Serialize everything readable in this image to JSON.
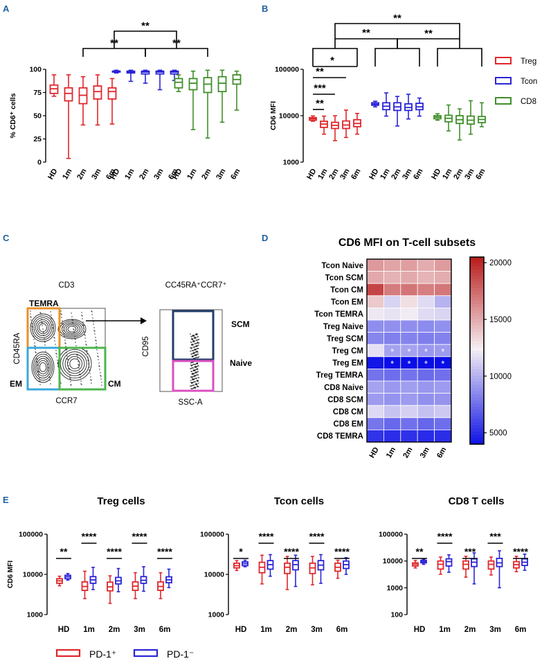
{
  "colors": {
    "treg": "#e0262b",
    "tcon": "#2a24d6",
    "cd8": "#3f8f2a",
    "panel_letter": "#1f5f9e",
    "black": "#000000",
    "gate_temra": "#e8912a",
    "gate_em": "#3aa7dd",
    "gate_cm": "#4bb54d",
    "gate_scm": "#233d6b",
    "gate_naive": "#d94fc0"
  },
  "panels": {
    "A": "A",
    "B": "B",
    "C": "C",
    "D": "D",
    "E": "E"
  },
  "chart_data": [
    {
      "id": "A",
      "type": "box",
      "ylabel": "% CD6⁺ cells",
      "yscale": "linear",
      "ylim": [
        0,
        100
      ],
      "yticks": [
        "0",
        "25",
        "50",
        "75",
        "100"
      ],
      "groups": [
        {
          "series": "Treg",
          "color": "treg",
          "categories": [
            "HD",
            "1m",
            "2m",
            "3m",
            "6m"
          ],
          "boxes": [
            [
              71,
              74,
              79,
              83,
              94
            ],
            [
              4,
              66,
              74,
              80,
              94
            ],
            [
              40,
              63,
              72,
              80,
              92
            ],
            [
              40,
              68,
              76,
              82,
              94
            ],
            [
              41,
              68,
              76,
              80,
              90
            ]
          ]
        },
        {
          "series": "Tcon",
          "color": "tcon",
          "categories": [
            "HD",
            "1m",
            "2m",
            "3m",
            "6m"
          ],
          "boxes": [
            [
              96,
              97,
              98,
              98,
              99
            ],
            [
              87,
              96,
              97,
              98,
              99
            ],
            [
              85,
              95,
              97,
              98,
              99
            ],
            [
              78,
              95,
              97,
              98,
              99
            ],
            [
              88,
              95,
              97,
              98,
              99
            ]
          ]
        },
        {
          "series": "CD8",
          "color": "cd8",
          "categories": [
            "HD",
            "1m",
            "2m",
            "3m",
            "6m"
          ],
          "boxes": [
            [
              76,
              80,
              86,
              90,
              94
            ],
            [
              35,
              78,
              85,
              90,
              98
            ],
            [
              26,
              75,
              84,
              91,
              99
            ],
            [
              43,
              76,
              85,
              92,
              99
            ],
            [
              56,
              84,
              89,
              94,
              98
            ]
          ]
        }
      ],
      "significance": [
        {
          "label": "**",
          "from": [
            0,
            2
          ],
          "to": [
            2,
            2
          ],
          "level": 1,
          "fromGroupSpan": true
        },
        {
          "label": "**",
          "from": [
            1,
            0
          ],
          "to": [
            1,
            4
          ],
          "level": 2
        },
        {
          "label": "**",
          "pairs": "inner"
        }
      ]
    },
    {
      "id": "B",
      "type": "box",
      "ylabel": "CD6 MFI",
      "yscale": "log",
      "ylim": [
        1000,
        100000
      ],
      "yticks": [
        "1000",
        "10000",
        "100000"
      ],
      "groups": [
        {
          "series": "Treg",
          "color": "treg",
          "categories": [
            "HD",
            "1m",
            "2m",
            "3m",
            "6m"
          ],
          "boxes": [
            [
              7600,
              8000,
              8600,
              9100,
              9900
            ],
            [
              4000,
              5600,
              6600,
              7600,
              9800
            ],
            [
              2900,
              5300,
              6200,
              7200,
              10000
            ],
            [
              3400,
              5300,
              6300,
              7700,
              13200
            ],
            [
              4000,
              5800,
              6800,
              8200,
              11200
            ]
          ]
        },
        {
          "series": "Tcon",
          "color": "tcon",
          "categories": [
            "HD",
            "1m",
            "2m",
            "3m",
            "6m"
          ],
          "boxes": [
            [
              15500,
              16800,
              17800,
              19000,
              20500
            ],
            [
              9800,
              13500,
              16000,
              19000,
              31000
            ],
            [
              6000,
              13000,
              15500,
              19000,
              26000
            ],
            [
              8500,
              13000,
              15000,
              18000,
              29000
            ],
            [
              9800,
              13500,
              15500,
              18500,
              24000
            ]
          ]
        },
        {
          "series": "CD8",
          "color": "cd8",
          "categories": [
            "HD",
            "1m",
            "2m",
            "3m",
            "6m"
          ],
          "boxes": [
            [
              8000,
              8600,
              9300,
              10000,
              11000
            ],
            [
              4700,
              7400,
              8800,
              10200,
              17000
            ],
            [
              3000,
              6800,
              8200,
              10000,
              14000
            ],
            [
              4000,
              6600,
              8000,
              9800,
              21000
            ],
            [
              5800,
              7100,
              8300,
              9600,
              19000
            ]
          ]
        }
      ],
      "legend": [
        {
          "name": "Treg",
          "color": "treg"
        },
        {
          "name": "Tcon",
          "color": "tcon"
        },
        {
          "name": "CD8",
          "color": "cd8"
        }
      ],
      "significance_within_treg": [
        "**",
        "***",
        "**",
        "*"
      ]
    },
    {
      "id": "D",
      "type": "heatmap",
      "title": "CD6 MFI on T-cell subsets",
      "rows": [
        "Tcon Naive",
        "Tcon SCM",
        "Tcon CM",
        "Tcon EM",
        "Tcon TEMRA",
        "Treg Naive",
        "Treg SCM",
        "Treg CM",
        "Treg EM",
        "Treg TEMRA",
        "CD8 Naive",
        "CD8 SCM",
        "CD8 CM",
        "CD8 EM",
        "CD8 TEMRA"
      ],
      "columns": [
        "HD",
        "1m",
        "2m",
        "3m",
        "6m"
      ],
      "values": [
        [
          15800,
          15400,
          15600,
          15100,
          15700
        ],
        [
          15200,
          14900,
          15200,
          14800,
          15100
        ],
        [
          19000,
          16900,
          17200,
          16800,
          17100
        ],
        [
          14000,
          11400,
          13200,
          11700,
          10200
        ],
        [
          12200,
          12000,
          12300,
          11700,
          11500
        ],
        [
          8800,
          8900,
          8800,
          8700,
          8900
        ],
        [
          8500,
          8300,
          8400,
          8200,
          8400
        ],
        [
          11900,
          9600,
          9600,
          9200,
          9300
        ],
        [
          4300,
          3900,
          3800,
          3700,
          3800
        ],
        [
          7800,
          7600,
          7800,
          7500,
          7700
        ],
        [
          9600,
          9200,
          9400,
          9100,
          9300
        ],
        [
          9300,
          9000,
          9300,
          8900,
          9000
        ],
        [
          11600,
          10800,
          11300,
          10700,
          11000
        ],
        [
          7900,
          7400,
          7700,
          7300,
          7600
        ],
        [
          5400,
          5200,
          5300,
          5100,
          5200
        ]
      ],
      "stars": {
        "Treg CM": [
          "",
          "*",
          "*",
          "*",
          "*"
        ],
        "Treg EM": [
          "",
          "*",
          "*",
          "*",
          "*"
        ]
      },
      "colorbar": {
        "min": 4000,
        "max": 20500,
        "ticks": [
          "5000",
          "10000",
          "15000",
          "20000"
        ]
      }
    },
    {
      "id": "E1",
      "type": "box",
      "title": "Treg cells",
      "ylabel": "CD6 MFI",
      "yscale": "log",
      "ylim": [
        1000,
        100000
      ],
      "yticks": [
        "1000",
        "10000",
        "100000"
      ],
      "categories": [
        "HD",
        "1m",
        "2m",
        "3m",
        "6m"
      ],
      "series": [
        {
          "name": "PD-1⁺",
          "color": "treg",
          "boxes": [
            [
              5200,
              6000,
              6900,
              7800,
              9000
            ],
            [
              2500,
              4000,
              5000,
              6500,
              12000
            ],
            [
              1900,
              3900,
              4900,
              6400,
              9200
            ],
            [
              2500,
              4000,
              5100,
              6500,
              11000
            ],
            [
              2500,
              4000,
              5000,
              6500,
              11000
            ]
          ]
        },
        {
          "name": "PD-1⁻",
          "color": "tcon",
          "boxes": [
            [
              7200,
              7800,
              8700,
              9500,
              10500
            ],
            [
              4200,
              6000,
              7300,
              8800,
              15000
            ],
            [
              3700,
              5800,
              6900,
              8400,
              14000
            ],
            [
              3800,
              6000,
              7100,
              8800,
              15500
            ],
            [
              4700,
              6200,
              7300,
              8700,
              13500
            ]
          ]
        }
      ],
      "stars": [
        "**",
        "****",
        "****",
        "****",
        "****"
      ]
    },
    {
      "id": "E2",
      "type": "box",
      "title": "Tcon cells",
      "yscale": "log",
      "ylim": [
        1000,
        100000
      ],
      "yticks": [
        "1000",
        "10000",
        "100000"
      ],
      "categories": [
        "HD",
        "1m",
        "2m",
        "3m",
        "6m"
      ],
      "series": [
        {
          "name": "PD-1⁺",
          "color": "treg",
          "boxes": [
            [
              12500,
              14500,
              16500,
              19000,
              22000
            ],
            [
              5800,
              11000,
              15000,
              20000,
              30000
            ],
            [
              4200,
              10500,
              15000,
              19000,
              28000
            ],
            [
              5500,
              10500,
              14500,
              19000,
              28000
            ],
            [
              8000,
              12000,
              15000,
              19000,
              22500
            ]
          ]
        },
        {
          "name": "PD-1⁻",
          "color": "tcon",
          "boxes": [
            [
              15500,
              16500,
              18500,
              20500,
              22500
            ],
            [
              9000,
              13500,
              17500,
              22000,
              31000
            ],
            [
              5000,
              13000,
              17500,
              22000,
              30000
            ],
            [
              6000,
              13000,
              17000,
              22000,
              31000
            ],
            [
              10000,
              14000,
              17500,
              21500,
              26000
            ]
          ]
        }
      ],
      "stars": [
        "*",
        "****",
        "****",
        "****",
        "****"
      ]
    },
    {
      "id": "E3",
      "type": "box",
      "title": "CD8 T cells",
      "yscale": "log",
      "ylim": [
        100,
        100000
      ],
      "yticks": [
        "100",
        "1000",
        "10000",
        "100000"
      ],
      "categories": [
        "HD",
        "1m",
        "2m",
        "3m",
        "6m"
      ],
      "series": [
        {
          "name": "PD-1⁺",
          "color": "treg",
          "boxes": [
            [
              5500,
              6500,
              7500,
              8500,
              10500
            ],
            [
              3200,
              5000,
              7500,
              10000,
              14000
            ],
            [
              2500,
              5000,
              7500,
              10000,
              15000
            ],
            [
              3000,
              5000,
              7500,
              10000,
              14000
            ],
            [
              4000,
              5500,
              7300,
              9500,
              15000
            ]
          ]
        },
        {
          "name": "PD-1⁻",
          "color": "tcon",
          "boxes": [
            [
              7500,
              8500,
              9500,
              10500,
              11500
            ],
            [
              3800,
              6500,
              9500,
              12000,
              17000
            ],
            [
              1400,
              6200,
              9000,
              12000,
              20000
            ],
            [
              1000,
              6200,
              8500,
              12500,
              24000
            ],
            [
              4500,
              6800,
              9000,
              12000,
              18000
            ]
          ]
        }
      ],
      "stars": [
        "**",
        "****",
        "***",
        "***",
        "****"
      ]
    }
  ],
  "panelC": {
    "cd3_label": "CD3",
    "gate_label": "CC45RA⁺CCR7⁺",
    "xaxis_left": "CCR7",
    "yaxis_left": "CD45RA",
    "xaxis_right": "SSC-A",
    "yaxis_right": "CD95",
    "gates": {
      "temra": "TEMRA",
      "em": "EM",
      "cm": "CM",
      "scm": "SCM",
      "naive": "Naive"
    }
  },
  "legendE": [
    {
      "name": "PD-1⁺",
      "color": "treg"
    },
    {
      "name": "PD-1⁻",
      "color": "tcon"
    }
  ]
}
